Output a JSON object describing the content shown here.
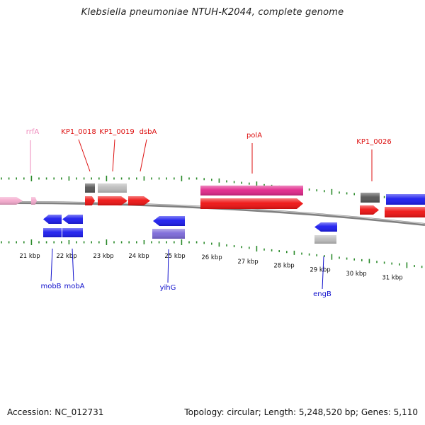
{
  "title": "Klebsiella pneumoniae NTUH-K2044, complete genome",
  "footer": {
    "accession": "Accession: NC_012731",
    "summary": "Topology: circular; Length: 5,248,520 bp; Genes: 5,110"
  },
  "colors": {
    "backbone": "#8a8a8a",
    "tick": "#2a8a2a",
    "label_red": "#dd1111",
    "label_blue": "#1111cc",
    "label_pink": "#ee88bb",
    "tick_label": "#111111"
  },
  "scale": {
    "unit": "kbp",
    "labels": [
      "21 kbp",
      "22 kbp",
      "23 kbp",
      "24 kbp",
      "25 kbp",
      "26 kbp",
      "27 kbp",
      "28 kbp",
      "29 kbp",
      "30 kbp",
      "31 kbp"
    ]
  },
  "top_labels": [
    {
      "text": "rrfA",
      "color": "#ee88bb"
    },
    {
      "text": "KP1_0018",
      "color": "#dd1111"
    },
    {
      "text": "KP1_0019",
      "color": "#dd1111"
    },
    {
      "text": "dsbA",
      "color": "#dd1111"
    },
    {
      "text": "polA",
      "color": "#dd1111"
    },
    {
      "text": "KP1_0026",
      "color": "#dd1111"
    }
  ],
  "bottom_labels": [
    {
      "text": "mobB",
      "color": "#1111cc"
    },
    {
      "text": "mobA",
      "color": "#1111cc"
    },
    {
      "text": "yihG",
      "color": "#1111cc"
    },
    {
      "text": "engB",
      "color": "#1111cc"
    }
  ],
  "features": [
    {
      "kind": "rRNA",
      "strand": "+",
      "color": "#f4a8cc"
    },
    {
      "kind": "rRNA",
      "strand": "+",
      "color": "#f4a8cc"
    },
    {
      "kind": "gene",
      "strand": "+",
      "color": "#555555"
    },
    {
      "kind": "gene",
      "strand": "+",
      "color": "#bbbbbb"
    },
    {
      "kind": "CDS",
      "strand": "+",
      "color": "#ee1111"
    },
    {
      "kind": "CDS",
      "strand": "+",
      "color": "#ee1111"
    },
    {
      "kind": "CDS",
      "strand": "+",
      "color": "#ee1111"
    },
    {
      "kind": "gene",
      "strand": "+",
      "color": "#e0268a"
    },
    {
      "kind": "CDS",
      "strand": "+",
      "color": "#ee1111"
    },
    {
      "kind": "gene",
      "strand": "+",
      "color": "#555555"
    },
    {
      "kind": "CDS",
      "strand": "+",
      "color": "#ee1111"
    },
    {
      "kind": "gene",
      "strand": "+",
      "color": "#1a1aee"
    },
    {
      "kind": "CDS",
      "strand": "+",
      "color": "#ee1111"
    },
    {
      "kind": "CDS",
      "strand": "-",
      "color": "#1a1aee"
    },
    {
      "kind": "CDS",
      "strand": "-",
      "color": "#1a1aee"
    },
    {
      "kind": "gene",
      "strand": "-",
      "color": "#1a1aee"
    },
    {
      "kind": "gene",
      "strand": "-",
      "color": "#1a1aee"
    },
    {
      "kind": "CDS",
      "strand": "-",
      "color": "#1a1aee"
    },
    {
      "kind": "gene",
      "strand": "-",
      "color": "#7b68d8"
    },
    {
      "kind": "CDS",
      "strand": "-",
      "color": "#1a1aee"
    },
    {
      "kind": "gene",
      "strand": "-",
      "color": "#bbbbbb"
    }
  ]
}
